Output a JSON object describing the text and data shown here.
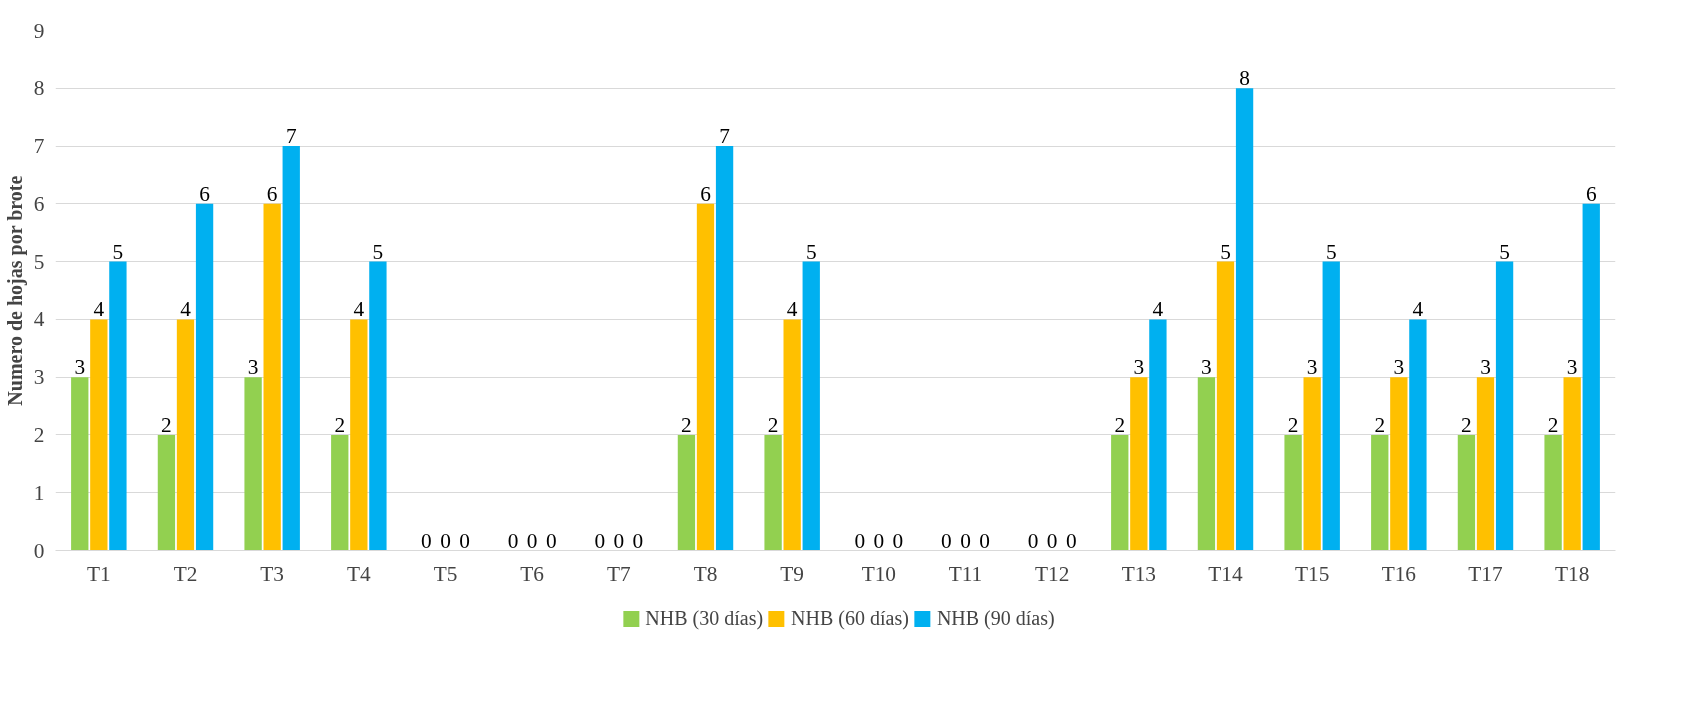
{
  "chart_data": {
    "type": "bar",
    "ylabel": "Numero de hojas por brote",
    "categories": [
      "T1",
      "T2",
      "T3",
      "T4",
      "T5",
      "T6",
      "T7",
      "T8",
      "T9",
      "T10",
      "T11",
      "T12",
      "T13",
      "T14",
      "T15",
      "T16",
      "T17",
      "T18"
    ],
    "series": [
      {
        "name": "NHB (30 días)",
        "color": "#92d050",
        "values": [
          3,
          2,
          3,
          2,
          0,
          0,
          0,
          2,
          2,
          0,
          0,
          0,
          2,
          3,
          2,
          2,
          2,
          2
        ]
      },
      {
        "name": "NHB (60 días)",
        "color": "#ffc000",
        "values": [
          4,
          4,
          6,
          4,
          0,
          0,
          0,
          6,
          4,
          0,
          0,
          0,
          3,
          5,
          3,
          3,
          3,
          3
        ]
      },
      {
        "name": "NHB (90 días)",
        "color": "#00b0f0",
        "values": [
          5,
          6,
          7,
          5,
          0,
          0,
          0,
          7,
          5,
          0,
          0,
          0,
          4,
          8,
          5,
          4,
          5,
          6
        ]
      }
    ],
    "ylim": [
      0,
      9
    ],
    "yticks": [
      0,
      1,
      2,
      3,
      4,
      5,
      6,
      7,
      8,
      9
    ],
    "grid": "y",
    "legend": "bottom",
    "data_labels": true
  }
}
